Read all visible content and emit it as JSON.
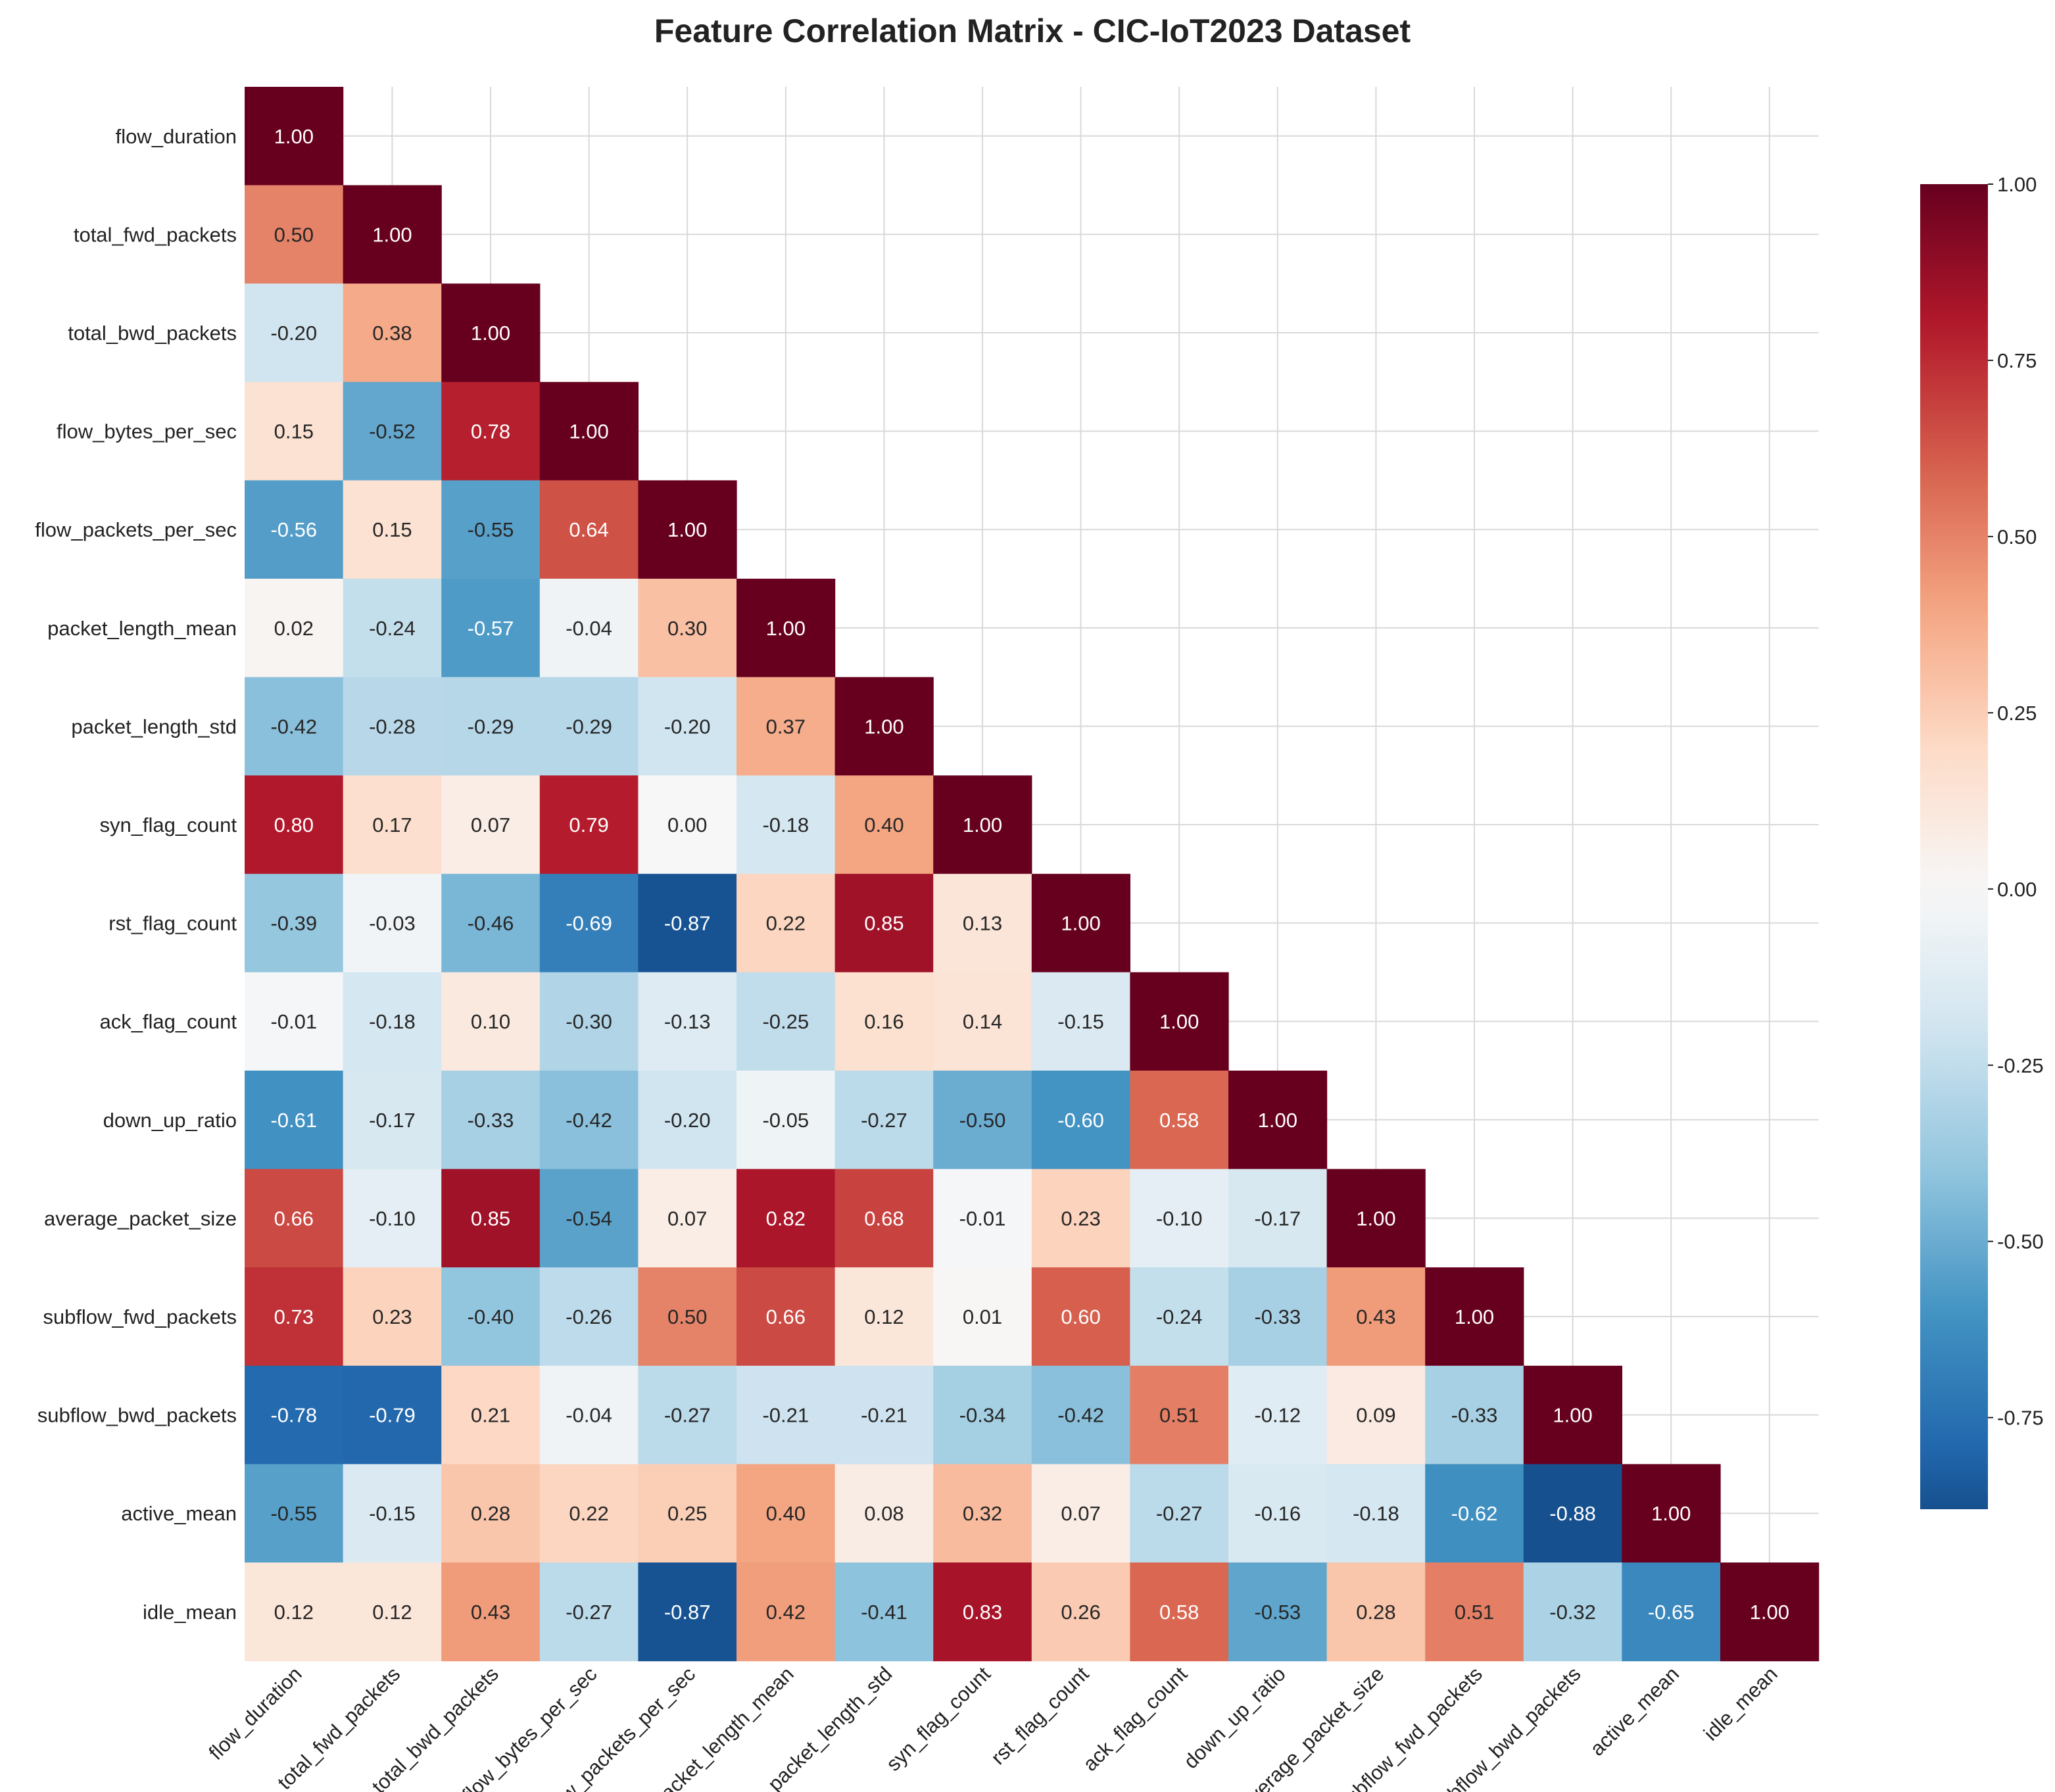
{
  "chart_data": {
    "type": "heatmap",
    "title": "Feature Correlation Matrix - CIC-IoT2023 Dataset",
    "labels": [
      "flow_duration",
      "total_fwd_packets",
      "total_bwd_packets",
      "flow_bytes_per_sec",
      "flow_packets_per_sec",
      "packet_length_mean",
      "packet_length_std",
      "syn_flag_count",
      "rst_flag_count",
      "ack_flag_count",
      "down_up_ratio",
      "average_packet_size",
      "subflow_fwd_packets",
      "subflow_bwd_packets",
      "active_mean",
      "idle_mean"
    ],
    "matrix": [
      [
        1.0
      ],
      [
        0.5,
        1.0
      ],
      [
        -0.2,
        0.38,
        1.0
      ],
      [
        0.15,
        -0.52,
        0.78,
        1.0
      ],
      [
        -0.56,
        0.15,
        -0.55,
        0.64,
        1.0
      ],
      [
        0.02,
        -0.24,
        -0.57,
        -0.04,
        0.3,
        1.0
      ],
      [
        -0.42,
        -0.28,
        -0.29,
        -0.29,
        -0.2,
        0.37,
        1.0
      ],
      [
        0.8,
        0.17,
        0.07,
        0.79,
        0.0,
        -0.18,
        0.4,
        1.0
      ],
      [
        -0.39,
        -0.03,
        -0.46,
        -0.69,
        -0.87,
        0.22,
        0.85,
        0.13,
        1.0
      ],
      [
        -0.01,
        -0.18,
        0.1,
        -0.3,
        -0.13,
        -0.25,
        0.16,
        0.14,
        -0.15,
        1.0
      ],
      [
        -0.61,
        -0.17,
        -0.33,
        -0.42,
        -0.2,
        -0.05,
        -0.27,
        -0.5,
        -0.6,
        0.58,
        1.0
      ],
      [
        0.66,
        -0.1,
        0.85,
        -0.54,
        0.07,
        0.82,
        0.68,
        -0.01,
        0.23,
        -0.1,
        -0.17,
        1.0
      ],
      [
        0.73,
        0.23,
        -0.4,
        -0.26,
        0.5,
        0.66,
        0.12,
        0.01,
        0.6,
        -0.24,
        -0.33,
        0.43,
        1.0
      ],
      [
        -0.78,
        -0.79,
        0.21,
        -0.04,
        -0.27,
        -0.21,
        -0.21,
        -0.34,
        -0.42,
        0.51,
        -0.12,
        0.09,
        -0.33,
        1.0
      ],
      [
        -0.55,
        -0.15,
        0.28,
        0.22,
        0.25,
        0.4,
        0.08,
        0.32,
        0.07,
        -0.27,
        -0.16,
        -0.18,
        -0.62,
        -0.88,
        1.0
      ],
      [
        0.12,
        0.12,
        0.43,
        -0.27,
        -0.87,
        0.42,
        -0.41,
        0.83,
        0.26,
        0.58,
        -0.53,
        0.28,
        0.51,
        -0.32,
        -0.65,
        1.0
      ]
    ],
    "value_format": "2 decimals",
    "colormap": "RdBu_r",
    "vmin": -0.88,
    "vmax": 1.0,
    "colorbar_ticks": [
      "1.00",
      "0.75",
      "0.50",
      "0.25",
      "0.00",
      "-0.25",
      "-0.50",
      "-0.75"
    ],
    "grid": true,
    "mask": "upper triangle"
  }
}
